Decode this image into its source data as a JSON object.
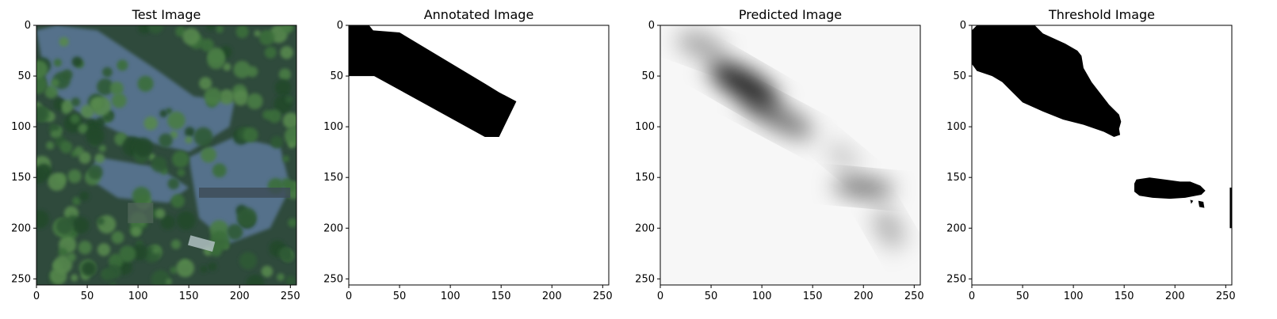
{
  "chart_data": [
    {
      "type": "image",
      "title": "Test Image",
      "xlim": [
        0,
        256
      ],
      "ylim": [
        256,
        0
      ],
      "xticks": [
        0,
        50,
        100,
        150,
        200,
        250
      ],
      "yticks": [
        0,
        50,
        100,
        150,
        200,
        250
      ],
      "content": "aerial photograph"
    },
    {
      "type": "image",
      "title": "Annotated Image",
      "xlim": [
        0,
        256
      ],
      "ylim": [
        256,
        0
      ],
      "xticks": [
        0,
        50,
        100,
        150,
        200,
        250
      ],
      "yticks": [
        0,
        50,
        100,
        150,
        200,
        250
      ],
      "regions": [
        {
          "color": "#000000",
          "polygon": [
            [
              0,
              0
            ],
            [
              20,
              0
            ],
            [
              24,
              5
            ],
            [
              50,
              7
            ],
            [
              135,
              58
            ],
            [
              148,
              66
            ],
            [
              165,
              75
            ],
            [
              148,
              110
            ],
            [
              134,
              110
            ],
            [
              25,
              50
            ],
            [
              0,
              50
            ]
          ]
        }
      ]
    },
    {
      "type": "image",
      "title": "Predicted Image",
      "xlim": [
        0,
        256
      ],
      "ylim": [
        256,
        0
      ],
      "xticks": [
        0,
        50,
        100,
        150,
        200,
        250
      ],
      "yticks": [
        0,
        50,
        100,
        150,
        200,
        250
      ],
      "colormap": "grayscale",
      "blobs": [
        {
          "cx": 82,
          "cy": 58,
          "rx": 38,
          "ry": 14,
          "rotate": 30,
          "opacity": 0.9
        },
        {
          "cx": 115,
          "cy": 90,
          "rx": 40,
          "ry": 12,
          "rotate": 28,
          "opacity": 0.55
        },
        {
          "cx": 40,
          "cy": 20,
          "rx": 25,
          "ry": 12,
          "rotate": 20,
          "opacity": 0.35
        },
        {
          "cx": 200,
          "cy": 160,
          "rx": 30,
          "ry": 10,
          "rotate": 5,
          "opacity": 0.55
        },
        {
          "cx": 225,
          "cy": 200,
          "rx": 22,
          "ry": 12,
          "rotate": 60,
          "opacity": 0.3
        },
        {
          "cx": 180,
          "cy": 130,
          "rx": 20,
          "ry": 10,
          "rotate": 40,
          "opacity": 0.2
        }
      ]
    },
    {
      "type": "image",
      "title": "Threshold Image",
      "xlim": [
        0,
        256
      ],
      "ylim": [
        256,
        0
      ],
      "xticks": [
        0,
        50,
        100,
        150,
        200,
        250
      ],
      "yticks": [
        0,
        50,
        100,
        150,
        200,
        250
      ],
      "regions": [
        {
          "color": "#000000",
          "polygon": [
            [
              5,
              0
            ],
            [
              62,
              0
            ],
            [
              70,
              8
            ],
            [
              92,
              18
            ],
            [
              104,
              25
            ],
            [
              108,
              30
            ],
            [
              110,
              42
            ],
            [
              118,
              56
            ],
            [
              135,
              78
            ],
            [
              145,
              88
            ],
            [
              147,
              95
            ],
            [
              145,
              102
            ],
            [
              146,
              108
            ],
            [
              140,
              110
            ],
            [
              130,
              105
            ],
            [
              110,
              98
            ],
            [
              90,
              93
            ],
            [
              70,
              85
            ],
            [
              50,
              76
            ],
            [
              40,
              66
            ],
            [
              30,
              56
            ],
            [
              20,
              50
            ],
            [
              5,
              45
            ],
            [
              0,
              38
            ],
            [
              0,
              5
            ]
          ]
        },
        {
          "color": "#000000",
          "polygon": [
            [
              162,
              152
            ],
            [
              175,
              150
            ],
            [
              190,
              152
            ],
            [
              205,
              154
            ],
            [
              215,
              154
            ],
            [
              225,
              158
            ],
            [
              230,
              163
            ],
            [
              226,
              167
            ],
            [
              210,
              170
            ],
            [
              195,
              171
            ],
            [
              178,
              170
            ],
            [
              165,
              168
            ],
            [
              160,
              164
            ],
            [
              160,
              156
            ]
          ]
        },
        {
          "color": "#000000",
          "polygon": [
            [
              223,
              173
            ],
            [
              228,
              174
            ],
            [
              229,
              180
            ],
            [
              224,
              179
            ]
          ]
        },
        {
          "color": "#000000",
          "polygon": [
            [
              215,
              172
            ],
            [
              218,
              173
            ],
            [
              216,
              176
            ]
          ]
        },
        {
          "color": "#000000",
          "polygon": [
            [
              254,
              160
            ],
            [
              256,
              160
            ],
            [
              256,
              200
            ],
            [
              254,
              200
            ]
          ]
        }
      ]
    }
  ]
}
